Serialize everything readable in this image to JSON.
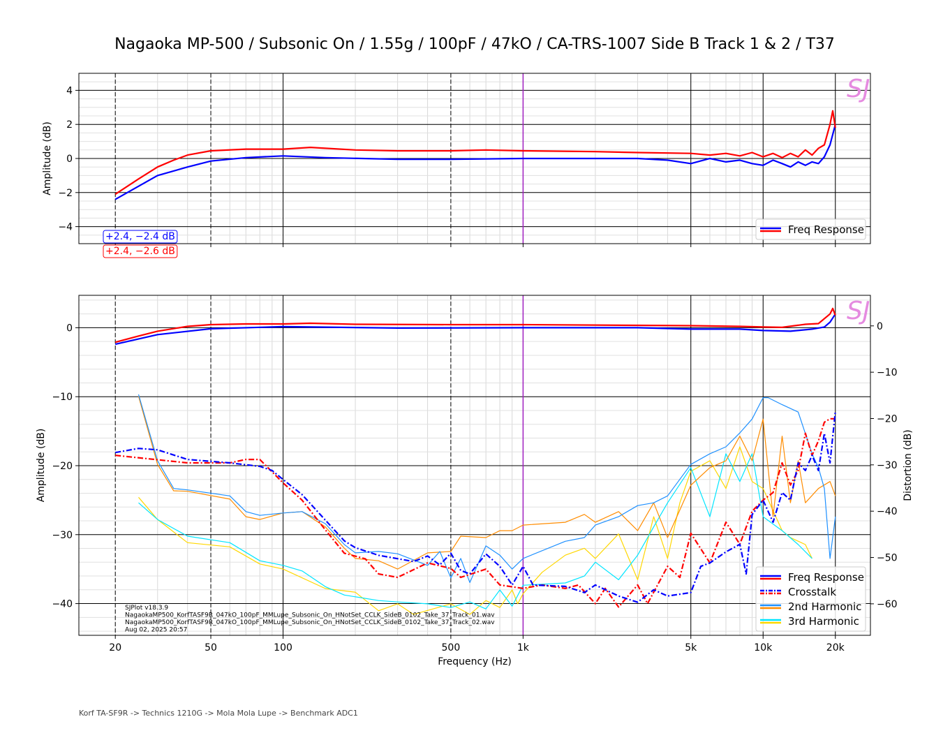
{
  "chart_data": [
    {
      "type": "line",
      "title": "Nagaoka MP-500 / Subsonic On / 1.55g / 100pF / 47kO / CA-TRS-1007 Side B Track 1 & 2 / T37",
      "ylabel": "Amplitude (dB)",
      "xscale": "log",
      "xlim": [
        14.1,
        28000
      ],
      "ylim": [
        -5,
        5
      ],
      "yticks": [
        4,
        2,
        0,
        -2,
        -4
      ],
      "ytick_labels": [
        "4",
        "2",
        "0",
        "−2",
        "−4"
      ],
      "legend": {
        "placement": "bottom-right",
        "entries": [
          "Freq Response"
        ]
      },
      "annotations": [
        {
          "text": "+2.4, −2.4 dB",
          "color": "#0000ff"
        },
        {
          "text": "+2.4, −2.6 dB",
          "color": "#ff0000"
        }
      ],
      "marker_freq": 1000,
      "series": [
        {
          "name": "Freq Response (L)",
          "color": "#ff0000",
          "x": [
            20,
            25,
            30,
            35,
            40,
            50,
            70,
            100,
            130,
            200,
            300,
            500,
            700,
            1000,
            2000,
            3000,
            5000,
            6000,
            7000,
            8000,
            9000,
            10000,
            11000,
            12000,
            13000,
            14000,
            15000,
            16000,
            17000,
            18000,
            19000,
            19500,
            20000
          ],
          "y": [
            -2.1,
            -1.2,
            -0.5,
            -0.1,
            0.2,
            0.45,
            0.55,
            0.55,
            0.65,
            0.5,
            0.45,
            0.45,
            0.5,
            0.45,
            0.4,
            0.35,
            0.3,
            0.2,
            0.3,
            0.15,
            0.35,
            0.1,
            0.3,
            0.05,
            0.3,
            0.1,
            0.5,
            0.2,
            0.6,
            0.8,
            2.0,
            2.8,
            1.8
          ]
        },
        {
          "name": "Freq Response (R)",
          "color": "#0000ff",
          "x": [
            20,
            30,
            40,
            50,
            70,
            100,
            150,
            300,
            500,
            1000,
            2000,
            3000,
            4000,
            5000,
            6000,
            7000,
            8000,
            9000,
            10000,
            11000,
            12000,
            13000,
            14000,
            15000,
            16000,
            17000,
            18000,
            19000,
            20000
          ],
          "y": [
            -2.4,
            -1.0,
            -0.5,
            -0.15,
            0.05,
            0.15,
            0.05,
            -0.05,
            -0.05,
            0,
            0,
            0,
            -0.1,
            -0.3,
            0,
            -0.2,
            -0.1,
            -0.3,
            -0.4,
            -0.1,
            -0.3,
            -0.5,
            -0.2,
            -0.4,
            -0.2,
            -0.3,
            0.1,
            0.8,
            2.0
          ]
        }
      ]
    },
    {
      "type": "line",
      "xlabel": "Frequency (Hz)",
      "ylabel": "Amplitude (dB)",
      "y2label": "Distortion (dB)",
      "xscale": "log",
      "xlim": [
        14.1,
        28000
      ],
      "ylim": [
        -44.6,
        4.7
      ],
      "y2lim": [
        -66.8,
        6.6
      ],
      "xticks": [
        20,
        50,
        100,
        500,
        1000,
        5000,
        10000,
        20000
      ],
      "xtick_labels": [
        "20",
        "50",
        "100",
        "500",
        "1k",
        "5k",
        "10k",
        "20k"
      ],
      "yticks": [
        0,
        -10,
        -20,
        -30,
        -40
      ],
      "ytick_labels": [
        "0",
        "−10",
        "−20",
        "−30",
        "−40"
      ],
      "y2ticks": [
        0,
        -10,
        -20,
        -30,
        -40,
        -50,
        -60
      ],
      "y2tick_labels": [
        "0",
        "−10",
        "−20",
        "−30",
        "−40",
        "−50",
        "−60"
      ],
      "legend": {
        "placement": "bottom-right",
        "entries": [
          "Freq Response",
          "Crosstalk",
          "2nd Harmonic",
          "3rd Harmonic"
        ]
      },
      "info_lines": [
        "SJPlot v18.3.9",
        "NagaokaMP500_KorfTASF9R_047kO_100pF_MMLupe_Subsonic_On_HNotSet_CCLK_SideB_0102_Take_37_Track_01.wav",
        "NagaokaMP500_KorfTASF9R_047kO_100pF_MMLupe_Subsonic_On_HNotSet_CCLK_SideB_0102_Take_37_Track_02.wav",
        "Aug 02, 2025 20:57"
      ],
      "marker_freq": 1000,
      "series": [
        {
          "name": "Freq Response (L)",
          "axis": "left",
          "color": "#ff0000",
          "dash": "",
          "x": [
            20,
            25,
            30,
            40,
            50,
            70,
            100,
            130,
            200,
            500,
            1000,
            3000,
            5000,
            8000,
            10000,
            12000,
            15000,
            17000,
            19000,
            19500,
            20000
          ],
          "y": [
            -2.1,
            -1.2,
            -0.5,
            0.2,
            0.45,
            0.55,
            0.55,
            0.65,
            0.5,
            0.45,
            0.45,
            0.35,
            0.3,
            0.2,
            0.1,
            0.05,
            0.5,
            0.6,
            2.0,
            2.8,
            1.8
          ]
        },
        {
          "name": "Freq Response (R)",
          "axis": "left",
          "color": "#0000ff",
          "dash": "",
          "x": [
            20,
            30,
            50,
            100,
            300,
            1000,
            3000,
            5000,
            8000,
            10000,
            13000,
            16000,
            18000,
            19000,
            20000
          ],
          "y": [
            -2.4,
            -1.0,
            -0.15,
            0.15,
            -0.05,
            0,
            0,
            -0.2,
            -0.2,
            -0.4,
            -0.5,
            -0.2,
            0.1,
            0.8,
            2.0
          ]
        },
        {
          "name": "Crosstalk (R)",
          "axis": "left",
          "color": "#0000ff",
          "dash": "8,3,2,3",
          "x": [
            20,
            25,
            30,
            40,
            60,
            80,
            90,
            100,
            120,
            150,
            180,
            200,
            250,
            350,
            400,
            450,
            500,
            550,
            600,
            700,
            800,
            900,
            1000,
            1100,
            1500,
            1800,
            2000,
            2500,
            3000,
            3500,
            4000,
            5000,
            5500,
            6000,
            7000,
            8000,
            8500,
            9000,
            10000,
            11000,
            12000,
            13000,
            14000,
            15000,
            16000,
            17000,
            18000,
            19000,
            20000
          ],
          "y": [
            -18.1,
            -17.5,
            -17.7,
            -19.1,
            -19.6,
            -20.1,
            -20.7,
            -22,
            -24.2,
            -27.9,
            -30.9,
            -31.9,
            -33,
            -33.9,
            -33.1,
            -34.4,
            -32.7,
            -35.2,
            -35.7,
            -32.8,
            -34.6,
            -37.3,
            -34.6,
            -37.3,
            -37.5,
            -38.4,
            -37.3,
            -38.9,
            -39.8,
            -38,
            -38.9,
            -38.4,
            -34.6,
            -34.1,
            -32.5,
            -31.4,
            -35.7,
            -27.1,
            -25,
            -28.2,
            -23.9,
            -25,
            -19.6,
            -20.7,
            -18.5,
            -20.7,
            -15.3,
            -19.6,
            -12.1
          ]
        },
        {
          "name": "Crosstalk (L)",
          "axis": "left",
          "color": "#ff0000",
          "dash": "8,3,2,3",
          "x": [
            20,
            40,
            60,
            70,
            80,
            100,
            120,
            150,
            180,
            220,
            250,
            300,
            400,
            500,
            550,
            700,
            800,
            1000,
            1200,
            1500,
            1700,
            2000,
            2200,
            2500,
            3000,
            3300,
            4000,
            4500,
            5000,
            6000,
            7000,
            8000,
            9000,
            10000,
            11000,
            12000,
            13000,
            14000,
            15000,
            16000,
            17000,
            18000,
            19000,
            20000
          ],
          "y": [
            -18.5,
            -19.6,
            -19.6,
            -19.1,
            -19.1,
            -22.5,
            -25,
            -29.3,
            -32.7,
            -33.5,
            -35.7,
            -36.2,
            -34.1,
            -34.9,
            -36.2,
            -35,
            -37.3,
            -37.8,
            -37.3,
            -37.8,
            -37.3,
            -40,
            -37.8,
            -40.5,
            -37.3,
            -40,
            -34.6,
            -36.2,
            -29.8,
            -34.1,
            -28.2,
            -31.4,
            -26.6,
            -25,
            -23.9,
            -19.6,
            -22.8,
            -20.7,
            -15.3,
            -18.5,
            -16.4,
            -13.7,
            -13.2,
            -13.2
          ]
        },
        {
          "name": "2nd Harmonic (R)",
          "axis": "right",
          "color": "#1e90ff",
          "dash": "",
          "x": [
            25,
            30,
            35,
            40,
            60,
            70,
            80,
            100,
            120,
            150,
            180,
            200,
            250,
            300,
            400,
            450,
            500,
            550,
            600,
            700,
            800,
            900,
            1000,
            1500,
            1800,
            2000,
            2500,
            3000,
            3500,
            4000,
            5000,
            6000,
            7000,
            8000,
            9000,
            10000,
            10500,
            12000,
            14000,
            16000,
            17000,
            18000,
            19000,
            20000
          ],
          "y": [
            -14.8,
            -29.1,
            -35.1,
            -35.4,
            -36.7,
            -40.1,
            -40.9,
            -40.4,
            -40.1,
            -42.7,
            -47.2,
            -49,
            -48.7,
            -49.2,
            -51.7,
            -48.7,
            -54.4,
            -50.2,
            -55.4,
            -47.5,
            -49.5,
            -52.5,
            -50.2,
            -46.5,
            -45.7,
            -43,
            -41.2,
            -38.8,
            -38.2,
            -36.7,
            -29.9,
            -27.6,
            -26.1,
            -23.1,
            -20.1,
            -15.5,
            -15.5,
            -17,
            -18.6,
            -27.6,
            -30.6,
            -35.1,
            -50.2,
            -41.2
          ]
        },
        {
          "name": "2nd Harmonic (L)",
          "axis": "right",
          "color": "#ff8c00",
          "dash": "",
          "x": [
            25,
            30,
            35,
            40,
            60,
            70,
            80,
            100,
            120,
            150,
            180,
            200,
            250,
            300,
            400,
            500,
            550,
            700,
            800,
            900,
            1000,
            1500,
            1800,
            2000,
            2500,
            3000,
            3500,
            4000,
            5000,
            6000,
            7000,
            8000,
            9000,
            10000,
            11000,
            12000,
            13000,
            14000,
            15000,
            17000,
            19000,
            20000
          ],
          "y": [
            -15.2,
            -29.9,
            -35.6,
            -35.7,
            -37.4,
            -41.2,
            -41.8,
            -40.4,
            -40.1,
            -43.4,
            -48,
            -50.2,
            -50.7,
            -52.5,
            -49,
            -48.7,
            -45.4,
            -45.7,
            -44.2,
            -44.2,
            -43,
            -42.4,
            -40.7,
            -42.4,
            -40.1,
            -44.2,
            -38.2,
            -45.7,
            -34.4,
            -30.6,
            -29.1,
            -23.8,
            -29.1,
            -20.1,
            -41.2,
            -23.8,
            -38.2,
            -29.1,
            -38.2,
            -35.1,
            -33.6,
            -36.7
          ]
        },
        {
          "name": "3rd Harmonic (R)",
          "axis": "right",
          "color": "#00e5ff",
          "dash": "",
          "x": [
            25,
            30,
            40,
            60,
            80,
            100,
            120,
            150,
            180,
            250,
            300,
            400,
            500,
            600,
            700,
            800,
            900,
            1000,
            1500,
            1800,
            2000,
            2500,
            3000,
            3500,
            4000,
            5000,
            6000,
            7000,
            8000,
            9000,
            10000,
            12000,
            14000,
            16000
          ],
          "y": [
            -38.2,
            -41.8,
            -45.4,
            -46.8,
            -50.7,
            -51.7,
            -52.9,
            -56.3,
            -58.1,
            -59.3,
            -59.6,
            -60,
            -60.8,
            -59.6,
            -61.1,
            -57,
            -60.5,
            -56,
            -55.5,
            -54,
            -51,
            -54.8,
            -49.5,
            -43.4,
            -38.2,
            -30.6,
            -41.2,
            -27.6,
            -33.6,
            -27.6,
            -41.2,
            -44.2,
            -47.2,
            -50.2
          ]
        },
        {
          "name": "3rd Harmonic (L)",
          "axis": "right",
          "color": "#ffd700",
          "dash": "",
          "x": [
            25,
            30,
            40,
            60,
            80,
            100,
            150,
            200,
            250,
            300,
            350,
            500,
            600,
            700,
            800,
            900,
            950,
            1000,
            1200,
            1500,
            1800,
            2000,
            2500,
            3000,
            3500,
            4000,
            4500,
            5000,
            6000,
            7000,
            8000,
            9000,
            10000,
            12000,
            13000,
            15000,
            16000
          ],
          "y": [
            -37,
            -41.8,
            -46.8,
            -47.7,
            -51.4,
            -52.5,
            -56.7,
            -57.5,
            -61.5,
            -60,
            -62.3,
            -60,
            -62.3,
            -59.3,
            -60.8,
            -57,
            -60,
            -57.8,
            -53.2,
            -49.5,
            -48,
            -50.2,
            -44.9,
            -54.8,
            -41.2,
            -50.2,
            -38.2,
            -31.4,
            -29.1,
            -35.1,
            -26.1,
            -33.6,
            -35.1,
            -44.2,
            -45.7,
            -47.2,
            -50.2
          ]
        }
      ]
    }
  ],
  "logo": "SJ",
  "footer": "Korf TA-SF9R -> Technics 1210G -> Mola Mola Lupe -> Benchmark ADC1"
}
